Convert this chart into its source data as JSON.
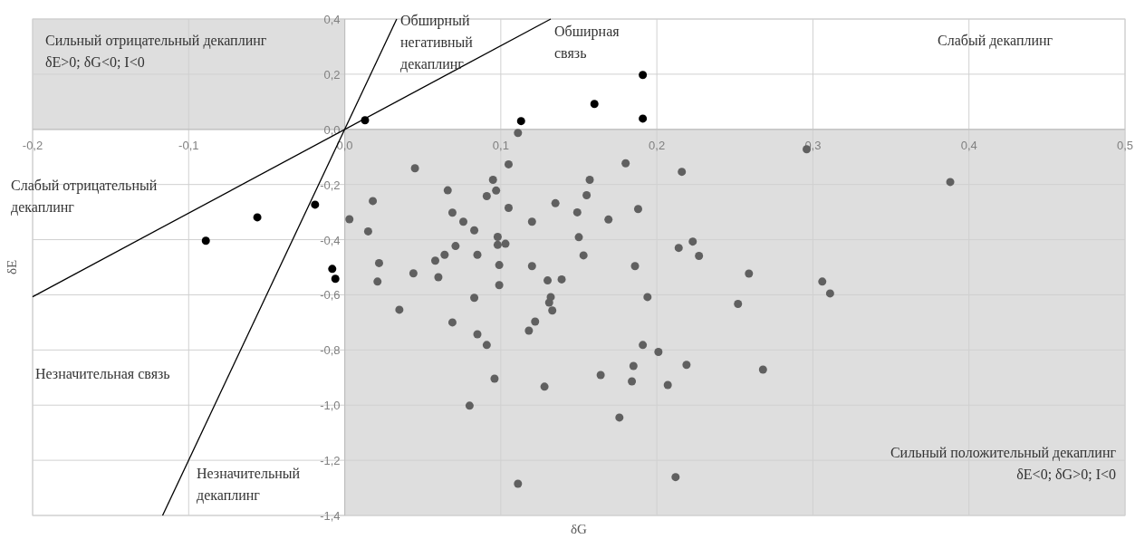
{
  "chart_data": {
    "type": "scatter",
    "xlabel": "δG",
    "ylabel": "δE",
    "xlim": [
      -0.2,
      0.5
    ],
    "ylim": [
      -1.4,
      0.4
    ],
    "xticks": [
      {
        "value": -0.2,
        "label": "-0,2"
      },
      {
        "value": -0.1,
        "label": "-0,1"
      },
      {
        "value": 0,
        "label": "0,0"
      },
      {
        "value": 0.1,
        "label": "0,1"
      },
      {
        "value": 0.2,
        "label": "0,2"
      },
      {
        "value": 0.3,
        "label": "0,3"
      },
      {
        "value": 0.4,
        "label": "0,4"
      },
      {
        "value": 0.5,
        "label": "0,5"
      }
    ],
    "yticks": [
      {
        "value": -1.4,
        "label": "-1,4"
      },
      {
        "value": -1.2,
        "label": "-1,2"
      },
      {
        "value": -1.0,
        "label": "-1,0"
      },
      {
        "value": -0.8,
        "label": "-0,8"
      },
      {
        "value": -0.6,
        "label": "-0,6"
      },
      {
        "value": -0.4,
        "label": "-0,4"
      },
      {
        "value": -0.2,
        "label": "-0,2"
      },
      {
        "value": 0,
        "label": "0,0"
      },
      {
        "value": 0.2,
        "label": "0,2"
      },
      {
        "value": 0.4,
        "label": "0,4"
      }
    ],
    "grid": true,
    "series": [
      {
        "type": "area",
        "color": "#dedede",
        "x": [
          -0.2,
          0
        ],
        "values": [
          0.4,
          0.4
        ]
      },
      {
        "type": "area",
        "color": "#dedede",
        "x": [
          0,
          0.5
        ],
        "values": [
          -1.4,
          -1.4
        ]
      },
      {
        "color": "#000000",
        "marker": "circle",
        "x": [
          0.013,
          0.113,
          0.16,
          0.191,
          0.191,
          -0.089,
          -0.056,
          -0.019,
          -0.008,
          -0.006
        ],
        "values": [
          0.033,
          0.03,
          0.092,
          0.197,
          0.039,
          -0.404,
          -0.319,
          -0.273,
          -0.506,
          -0.542
        ]
      },
      {
        "color": "#606060",
        "marker": "circle",
        "x": [
          0.111,
          0.045,
          0.105,
          0.095,
          0.097,
          0.066,
          0.018,
          0.091,
          0.105,
          0.069,
          0.003,
          0.076,
          0.12,
          0.135,
          0.149,
          0.015,
          0.083,
          0.098,
          0.098,
          0.103,
          0.071,
          0.064,
          0.085,
          0.058,
          0.022,
          0.099,
          0.12,
          0.153,
          0.021,
          0.044,
          0.06,
          0.099,
          0.13,
          0.139,
          0.132,
          0.131,
          0.133,
          0.122,
          0.118,
          0.083,
          0.035,
          0.069,
          0.085,
          0.091,
          0.096,
          0.128,
          0.08,
          0.111,
          0.18,
          0.216,
          0.157,
          0.155,
          0.169,
          0.188,
          0.15,
          0.214,
          0.223,
          0.227,
          0.186,
          0.259,
          0.194,
          0.252,
          0.306,
          0.311,
          0.191,
          0.201,
          0.185,
          0.219,
          0.268,
          0.164,
          0.184,
          0.207,
          0.176,
          0.212,
          0.296,
          0.388
        ],
        "values": [
          -0.013,
          -0.141,
          -0.127,
          -0.183,
          -0.222,
          -0.221,
          -0.26,
          -0.242,
          -0.285,
          -0.302,
          -0.326,
          -0.335,
          -0.335,
          -0.268,
          -0.301,
          -0.37,
          -0.366,
          -0.39,
          -0.419,
          -0.415,
          -0.423,
          -0.455,
          -0.455,
          -0.476,
          -0.485,
          -0.492,
          -0.496,
          -0.457,
          -0.552,
          -0.522,
          -0.536,
          -0.565,
          -0.548,
          -0.544,
          -0.608,
          -0.628,
          -0.657,
          -0.697,
          -0.73,
          -0.611,
          -0.654,
          -0.7,
          -0.743,
          -0.782,
          -0.904,
          -0.933,
          -1.002,
          -1.285,
          -0.123,
          -0.154,
          -0.183,
          -0.239,
          -0.327,
          -0.289,
          -0.391,
          -0.43,
          -0.407,
          -0.459,
          -0.496,
          -0.523,
          -0.608,
          -0.633,
          -0.552,
          -0.595,
          -0.782,
          -0.807,
          -0.858,
          -0.854,
          -0.871,
          -0.891,
          -0.914,
          -0.927,
          -1.045,
          -1.261,
          -0.072,
          -0.191
        ]
      },
      {
        "type": "line",
        "color": "#000000",
        "marker": "none",
        "x": [
          -0.2,
          0.132
        ],
        "values": [
          -0.607,
          0.4
        ]
      },
      {
        "type": "line",
        "color": "#000000",
        "marker": "none",
        "x": [
          -0.1167,
          0.0333
        ],
        "values": [
          -1.4,
          0.4
        ]
      }
    ],
    "annotations": [
      "Сильный отрицательный декаплинг\nδE>0; δG<0; I<0",
      "Обширный\nнегативный\nдекаплинг",
      "Обширная\nсвязь",
      "Слабый декаплинг",
      "Слабый отрицательный\nдекаплинг",
      "Незначительная связь",
      "Незначительный\nдекаплинг",
      "Сильный положительный декаплинг\nδE<0; δG>0; I<0"
    ]
  }
}
